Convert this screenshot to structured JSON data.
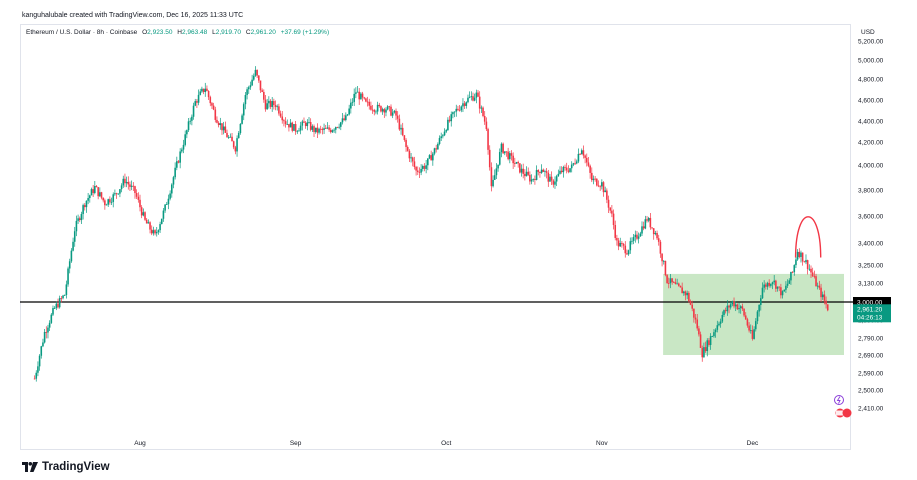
{
  "credit": "kanguhalubale created with TradingView.com, Dec 16, 2025 11:33 UTC",
  "legend": {
    "symbol": "Ethereum / U.S. Dollar · 8h · Coinbase",
    "open_key": "O",
    "open": "2,923.50",
    "high_key": "H",
    "high": "2,963.48",
    "low_key": "L",
    "low": "2,919.70",
    "close_key": "C",
    "close": "2,961.20",
    "change": "+37.69 (+1.29%)"
  },
  "currency": "USD",
  "brand": "TradingView",
  "colors": {
    "up": "#089981",
    "down": "#f23645",
    "zone": "#b7dfb1",
    "line": "#000000"
  },
  "chart_data": {
    "type": "candlestick",
    "x_ticks": [
      "Aug",
      "Sep",
      "Oct",
      "Nov",
      "Dec"
    ],
    "y_ticks": [
      "5,200.00",
      "5,000.00",
      "4,800.00",
      "4,600.00",
      "4,400.00",
      "4,200.00",
      "4,000.00",
      "3,800.00",
      "3,600.00",
      "3,400.00",
      "3,250.00",
      "3,130.00",
      "3,000.00",
      "2,890.00",
      "2,790.00",
      "2,690.00",
      "2,590.00",
      "2,500.00",
      "2,410.00"
    ],
    "y_scale": "log",
    "price_path": [
      [
        "Jul 11",
        2560
      ],
      [
        "Jul 13",
        2820
      ],
      [
        "Jul 15",
        2960
      ],
      [
        "Jul 17",
        3050
      ],
      [
        "Jul 19",
        3500
      ],
      [
        "Jul 21",
        3700
      ],
      [
        "Jul 23",
        3820
      ],
      [
        "Jul 25",
        3700
      ],
      [
        "Jul 27",
        3760
      ],
      [
        "Jul 29",
        3880
      ],
      [
        "Jul 31",
        3780
      ],
      [
        "Aug 2",
        3560
      ],
      [
        "Aug 4",
        3450
      ],
      [
        "Aug 6",
        3660
      ],
      [
        "Aug 8",
        3950
      ],
      [
        "Aug 10",
        4250
      ],
      [
        "Aug 12",
        4580
      ],
      [
        "Aug 14",
        4720
      ],
      [
        "Aug 16",
        4450
      ],
      [
        "Aug 18",
        4280
      ],
      [
        "Aug 20",
        4150
      ],
      [
        "Aug 22",
        4650
      ],
      [
        "Aug 24",
        4870
      ],
      [
        "Aug 26",
        4550
      ],
      [
        "Aug 28",
        4560
      ],
      [
        "Aug 30",
        4390
      ],
      [
        "Sep 1",
        4320
      ],
      [
        "Sep 3",
        4380
      ],
      [
        "Sep 5",
        4300
      ],
      [
        "Sep 8",
        4320
      ],
      [
        "Sep 11",
        4420
      ],
      [
        "Sep 13",
        4680
      ],
      [
        "Sep 15",
        4560
      ],
      [
        "Sep 17",
        4520
      ],
      [
        "Sep 19",
        4520
      ],
      [
        "Sep 21",
        4450
      ],
      [
        "Sep 23",
        4150
      ],
      [
        "Sep 25",
        3950
      ],
      [
        "Sep 27",
        4000
      ],
      [
        "Sep 29",
        4150
      ],
      [
        "Oct 1",
        4350
      ],
      [
        "Oct 3",
        4500
      ],
      [
        "Oct 5",
        4600
      ],
      [
        "Oct 7",
        4650
      ],
      [
        "Oct 9",
        4350
      ],
      [
        "Oct 10",
        3800
      ],
      [
        "Oct 12",
        4150
      ],
      [
        "Oct 14",
        4050
      ],
      [
        "Oct 16",
        3950
      ],
      [
        "Oct 18",
        3880
      ],
      [
        "Oct 20",
        3980
      ],
      [
        "Oct 22",
        3850
      ],
      [
        "Oct 24",
        3950
      ],
      [
        "Oct 26",
        3980
      ],
      [
        "Oct 28",
        4150
      ],
      [
        "Oct 30",
        3880
      ],
      [
        "Nov 1",
        3850
      ],
      [
        "Nov 3",
        3600
      ],
      [
        "Nov 4",
        3400
      ],
      [
        "Nov 6",
        3350
      ],
      [
        "Nov 8",
        3450
      ],
      [
        "Nov 10",
        3580
      ],
      [
        "Nov 12",
        3450
      ],
      [
        "Nov 14",
        3150
      ],
      [
        "Nov 16",
        3100
      ],
      [
        "Nov 18",
        3050
      ],
      [
        "Nov 20",
        2850
      ],
      [
        "Nov 21",
        2700
      ],
      [
        "Nov 23",
        2810
      ],
      [
        "Nov 25",
        2920
      ],
      [
        "Nov 27",
        3000
      ],
      [
        "Nov 29",
        2950
      ],
      [
        "Dec 1",
        2780
      ],
      [
        "Dec 3",
        3100
      ],
      [
        "Dec 5",
        3150
      ],
      [
        "Dec 7",
        3050
      ],
      [
        "Dec 9",
        3200
      ],
      [
        "Dec 10",
        3350
      ],
      [
        "Dec 12",
        3250
      ],
      [
        "Dec 14",
        3100
      ],
      [
        "Dec 16",
        2961
      ]
    ],
    "zone": {
      "low": 2690,
      "high": 3190
    },
    "horizontal_line": 3000,
    "arc_annotation_top": 3560,
    "last_price": "2,961.20",
    "countdown": "04:26:13",
    "line_label": "3,000.00"
  }
}
